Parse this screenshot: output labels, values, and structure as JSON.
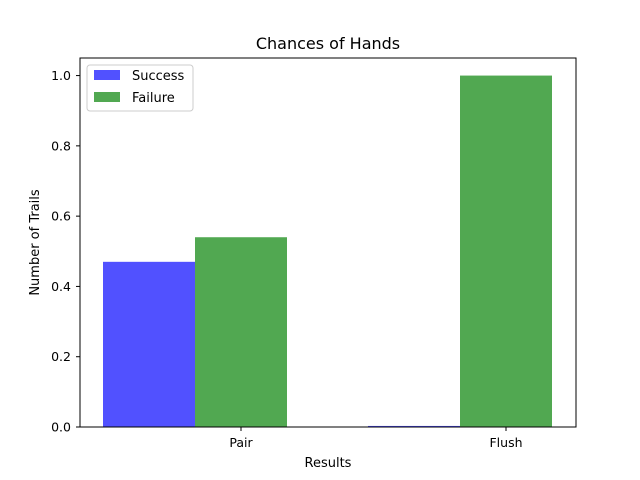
{
  "chart_data": {
    "type": "bar",
    "title": "Chances of Hands",
    "xlabel": "Results",
    "ylabel": "Number of Trails",
    "categories": [
      "Pair",
      "Flush"
    ],
    "series": [
      {
        "name": "Success",
        "color": "#3333ff",
        "values": [
          0.47,
          0.003
        ]
      },
      {
        "name": "Failure",
        "color": "#339933",
        "values": [
          0.54,
          1.0
        ]
      }
    ],
    "ylim": [
      0,
      1.05
    ],
    "yticks": [
      "0.0",
      "0.2",
      "0.4",
      "0.6",
      "0.8",
      "1.0"
    ],
    "grid": false,
    "legend_position": "top-left"
  }
}
